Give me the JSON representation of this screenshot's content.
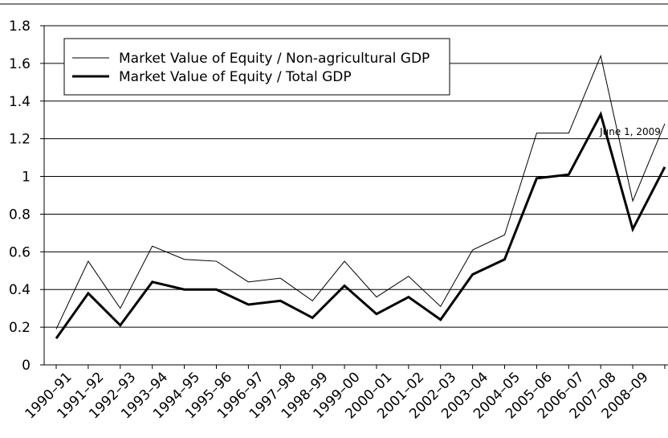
{
  "chart_data": {
    "type": "line",
    "categories": [
      "1990–91",
      "1991–92",
      "1992–93",
      "1993–94",
      "1994–95",
      "1995–96",
      "1996–97",
      "1997–98",
      "1998–99",
      "1999–00",
      "2000–01",
      "2001–02",
      "2002–03",
      "2003–04",
      "2004–05",
      "2005–06",
      "2006–07",
      "2007–08",
      "2008–09",
      null
    ],
    "series": [
      {
        "name": "Market Value of Equity / Non-agricultural GDP",
        "color": "#000000",
        "width": 1,
        "values": [
          0.19,
          0.55,
          0.3,
          0.63,
          0.56,
          0.55,
          0.44,
          0.46,
          0.34,
          0.55,
          0.36,
          0.47,
          0.31,
          0.61,
          0.69,
          1.23,
          1.23,
          1.64,
          0.87,
          1.28
        ]
      },
      {
        "name": "Market Value of Equity / Total GDP",
        "color": "#000000",
        "width": 3,
        "values": [
          0.14,
          0.38,
          0.21,
          0.44,
          0.4,
          0.4,
          0.32,
          0.34,
          0.25,
          0.42,
          0.27,
          0.36,
          0.24,
          0.48,
          0.56,
          0.99,
          1.01,
          1.33,
          0.72,
          1.05
        ]
      }
    ],
    "annotations": [
      "June 1, 2009"
    ],
    "ylim": [
      0,
      1.8
    ],
    "yticks": [
      0,
      0.2,
      0.4,
      0.6,
      0.8,
      1,
      1.2,
      1.4,
      1.6,
      1.8
    ],
    "grid": true
  }
}
